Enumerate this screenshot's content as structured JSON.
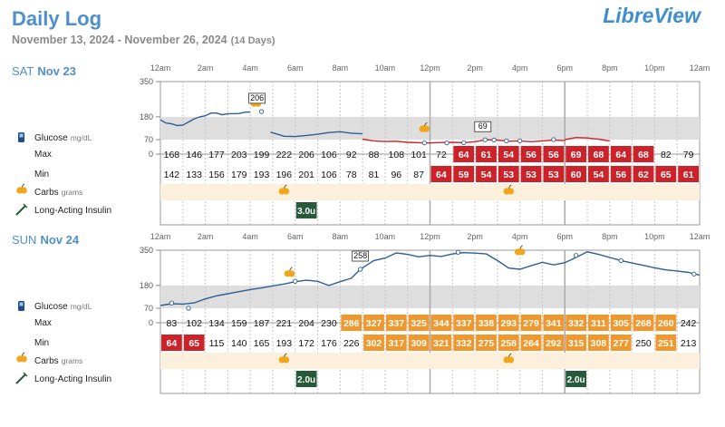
{
  "header": {
    "title": "Daily Log",
    "date_range": "November 13, 2024 - November 26, 2024",
    "days": "(14 Days)",
    "brand": "LibreView"
  },
  "hour_labels": [
    "12am",
    "2am",
    "4am",
    "6am",
    "8am",
    "10am",
    "12pm",
    "2pm",
    "4pm",
    "6pm",
    "8pm",
    "10pm",
    "12am"
  ],
  "row_labels": {
    "glucose": "Glucose",
    "glucose_unit": "mg/dL",
    "max": "Max",
    "min": "Min",
    "carbs": "Carbs",
    "carbs_unit": "grams",
    "insulin": "Long-Acting Insulin"
  },
  "colors": {
    "accent": "#4f8fcb",
    "trace": "#2d5f94",
    "low_trace": "#cc2229",
    "low": "#cc2229",
    "high": "#f0982d",
    "insulin": "#255a3a",
    "target_band": "#dedede",
    "carbs_band": "#fcefdc"
  },
  "chart_data": [
    {
      "type": "line",
      "day": "SAT",
      "date": "Nov 23",
      "y_ticks": [
        350,
        180,
        70,
        0
      ],
      "ylim": [
        0,
        350
      ],
      "target_range": [
        70,
        180
      ],
      "glucose_trace": [
        {
          "x": 0.0,
          "y": 165
        },
        {
          "x": 0.5,
          "y": 150
        },
        {
          "x": 1.0,
          "y": 146
        },
        {
          "x": 1.5,
          "y": 138
        },
        {
          "x": 2.0,
          "y": 140
        },
        {
          "x": 2.5,
          "y": 155
        },
        {
          "x": 3.0,
          "y": 170
        },
        {
          "x": 3.5,
          "y": 180
        },
        {
          "x": 4.0,
          "y": 185
        },
        {
          "x": 4.5,
          "y": 198
        },
        {
          "x": 5.0,
          "y": 198
        },
        {
          "x": 5.5,
          "y": 190
        },
        {
          "x": 6.0,
          "y": 195
        },
        {
          "x": 6.5,
          "y": 195
        },
        {
          "x": 7.0,
          "y": 196
        },
        {
          "x": 7.5,
          "y": 202
        },
        {
          "x": 8.0,
          "y": 203
        }
      ],
      "glucose_trace_2": [
        {
          "x": 9.8,
          "y": 106
        },
        {
          "x": 10.5,
          "y": 95
        },
        {
          "x": 11.0,
          "y": 86
        },
        {
          "x": 12.0,
          "y": 85
        },
        {
          "x": 13.0,
          "y": 90
        },
        {
          "x": 14.0,
          "y": 96
        },
        {
          "x": 15.0,
          "y": 104
        },
        {
          "x": 16.0,
          "y": 108
        },
        {
          "x": 17.0,
          "y": 101
        },
        {
          "x": 18.0,
          "y": 98
        }
      ],
      "glucose_trace_3": [
        {
          "x": 18.0,
          "y": 72
        },
        {
          "x": 19.0,
          "y": 64
        },
        {
          "x": 20.0,
          "y": 61
        },
        {
          "x": 21.0,
          "y": 62
        },
        {
          "x": 22.0,
          "y": 57
        },
        {
          "x": 23.0,
          "y": 55
        },
        {
          "x": 24.0,
          "y": 54
        },
        {
          "x": 25.0,
          "y": 56
        },
        {
          "x": 26.0,
          "y": 57
        },
        {
          "x": 27.0,
          "y": 55
        },
        {
          "x": 28.0,
          "y": 60
        },
        {
          "x": 29.0,
          "y": 69
        },
        {
          "x": 30.0,
          "y": 68
        },
        {
          "x": 31.0,
          "y": 62
        },
        {
          "x": 32.0,
          "y": 64
        },
        {
          "x": 33.0,
          "y": 60
        },
        {
          "x": 34.0,
          "y": 64
        },
        {
          "x": 35.0,
          "y": 68
        },
        {
          "x": 36.0,
          "y": 65
        }
      ],
      "glucose_trace_4": [
        {
          "x": 36.0,
          "y": 70
        },
        {
          "x": 37.0,
          "y": 80
        },
        {
          "x": 38.0,
          "y": 78
        },
        {
          "x": 38.5,
          "y": 75
        },
        {
          "x": 39.0,
          "y": 72
        },
        {
          "x": 39.5,
          "y": 68
        },
        {
          "x": 40.0,
          "y": 63
        }
      ],
      "annotations": [
        {
          "x": 8.6,
          "y": 206,
          "text": "206"
        },
        {
          "x": 28.7,
          "y": 69,
          "text": "69"
        }
      ],
      "carb_markers_chart": [
        {
          "x": 8.5,
          "y": 222
        },
        {
          "x": 23.5,
          "y": 100
        }
      ],
      "points": [
        {
          "x": 9.0,
          "y": 205
        },
        {
          "x": 23.5,
          "y": 54
        },
        {
          "x": 25.5,
          "y": 54
        },
        {
          "x": 27.0,
          "y": 55
        },
        {
          "x": 28.9,
          "y": 69
        },
        {
          "x": 29.7,
          "y": 68
        },
        {
          "x": 30.8,
          "y": 64
        },
        {
          "x": 32.0,
          "y": 64
        },
        {
          "x": 35.0,
          "y": 70
        }
      ],
      "divider_hours": [
        4,
        12,
        18
      ],
      "max": [
        168,
        146,
        177,
        203,
        199,
        222,
        206,
        106,
        92,
        88,
        108,
        101,
        72,
        64,
        61,
        54,
        56,
        56,
        69,
        68,
        64,
        68,
        82,
        79
      ],
      "min": [
        142,
        133,
        156,
        179,
        193,
        196,
        201,
        106,
        78,
        81,
        96,
        87,
        64,
        59,
        54,
        53,
        53,
        53,
        60,
        54,
        56,
        62,
        65,
        61
      ],
      "carbs_slots": [
        5,
        15
      ],
      "insulin": [
        {
          "slot": 6,
          "text": "3.0u"
        }
      ]
    },
    {
      "type": "line",
      "day": "SUN",
      "date": "Nov 24",
      "y_ticks": [
        350,
        180,
        70,
        0
      ],
      "ylim": [
        0,
        350
      ],
      "target_range": [
        70,
        180
      ],
      "glucose_trace": [
        {
          "x": 0.0,
          "y": 83
        },
        {
          "x": 1.0,
          "y": 92
        },
        {
          "x": 2.0,
          "y": 90
        },
        {
          "x": 3.0,
          "y": 96
        },
        {
          "x": 4.0,
          "y": 115
        },
        {
          "x": 5.0,
          "y": 130
        },
        {
          "x": 6.0,
          "y": 140
        },
        {
          "x": 7.0,
          "y": 150
        },
        {
          "x": 8.0,
          "y": 160
        },
        {
          "x": 9.0,
          "y": 168
        },
        {
          "x": 10.0,
          "y": 178
        },
        {
          "x": 11.0,
          "y": 187
        },
        {
          "x": 12.0,
          "y": 198
        },
        {
          "x": 13.0,
          "y": 205
        },
        {
          "x": 14.0,
          "y": 200
        },
        {
          "x": 15.0,
          "y": 180
        },
        {
          "x": 16.0,
          "y": 198
        },
        {
          "x": 17.0,
          "y": 215
        },
        {
          "x": 17.8,
          "y": 258
        },
        {
          "x": 19.0,
          "y": 300
        },
        {
          "x": 20.0,
          "y": 312
        },
        {
          "x": 21.0,
          "y": 337
        },
        {
          "x": 22.0,
          "y": 330
        },
        {
          "x": 23.0,
          "y": 318
        },
        {
          "x": 24.0,
          "y": 325
        },
        {
          "x": 25.0,
          "y": 320
        },
        {
          "x": 26.0,
          "y": 332
        },
        {
          "x": 27.0,
          "y": 338
        },
        {
          "x": 28.0,
          "y": 336
        },
        {
          "x": 29.0,
          "y": 332
        },
        {
          "x": 30.0,
          "y": 300
        },
        {
          "x": 31.0,
          "y": 264
        },
        {
          "x": 32.0,
          "y": 258
        },
        {
          "x": 33.0,
          "y": 275
        },
        {
          "x": 34.0,
          "y": 292
        },
        {
          "x": 35.0,
          "y": 279
        },
        {
          "x": 36.0,
          "y": 290
        },
        {
          "x": 37.0,
          "y": 315
        },
        {
          "x": 38.0,
          "y": 342
        },
        {
          "x": 39.0,
          "y": 330
        },
        {
          "x": 40.0,
          "y": 315
        },
        {
          "x": 41.0,
          "y": 300
        },
        {
          "x": 42.0,
          "y": 288
        },
        {
          "x": 43.0,
          "y": 277
        },
        {
          "x": 44.0,
          "y": 265
        },
        {
          "x": 45.0,
          "y": 255
        },
        {
          "x": 46.0,
          "y": 250
        },
        {
          "x": 47.0,
          "y": 243
        },
        {
          "x": 48.0,
          "y": 230
        }
      ],
      "glucose_trace_2": [],
      "glucose_trace_3": [],
      "glucose_trace_4": [],
      "annotations": [
        {
          "x": 17.8,
          "y": 258,
          "text": "258"
        }
      ],
      "carb_markers_chart": [
        {
          "x": 11.5,
          "y": 215
        },
        {
          "x": 32.0,
          "y": 320
        }
      ],
      "points": [
        {
          "x": 1.0,
          "y": 95
        },
        {
          "x": 2.5,
          "y": 70
        },
        {
          "x": 12.0,
          "y": 200
        },
        {
          "x": 17.8,
          "y": 258
        },
        {
          "x": 26.5,
          "y": 340
        },
        {
          "x": 37.0,
          "y": 325
        },
        {
          "x": 41.0,
          "y": 300
        },
        {
          "x": 47.5,
          "y": 235
        }
      ],
      "divider_hours": [
        4,
        12,
        18
      ],
      "max": [
        83,
        102,
        134,
        159,
        187,
        221,
        204,
        230,
        286,
        327,
        337,
        325,
        344,
        337,
        338,
        293,
        279,
        341,
        332,
        311,
        305,
        268,
        260,
        242
      ],
      "min": [
        64,
        65,
        115,
        140,
        165,
        193,
        172,
        176,
        226,
        302,
        317,
        309,
        321,
        332,
        275,
        258,
        264,
        292,
        315,
        308,
        277,
        250,
        251,
        213
      ],
      "carbs_slots": [
        5,
        15
      ],
      "insulin": [
        {
          "slot": 6,
          "text": "2.0u"
        },
        {
          "slot": 18,
          "text": "2.0u"
        }
      ]
    }
  ]
}
